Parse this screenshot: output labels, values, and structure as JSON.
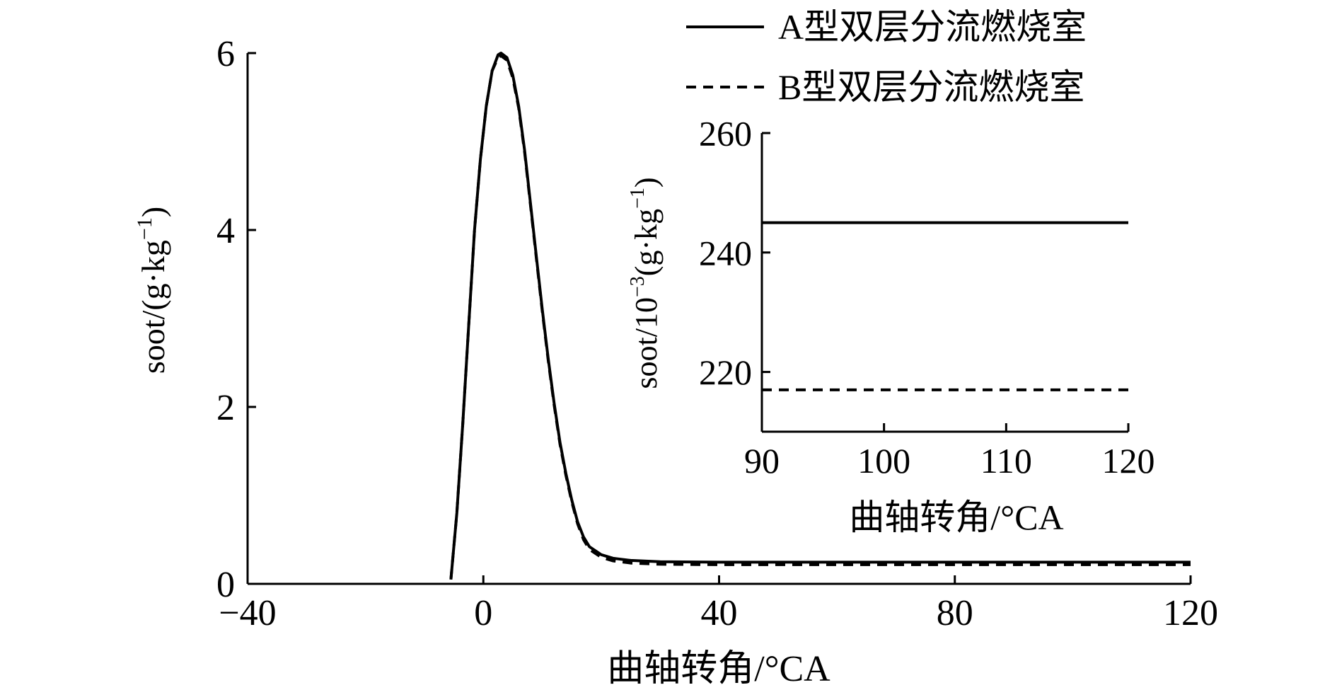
{
  "chart_data": [
    {
      "type": "line",
      "title": "",
      "xlabel": "曲轴转角/°CA",
      "ylabel_parts": [
        "soot/(g·kg",
        "−1",
        ")"
      ],
      "xlim": [
        -40,
        120
      ],
      "ylim": [
        0,
        6
      ],
      "x_ticks": [
        -40,
        0,
        40,
        80,
        120
      ],
      "x_tick_labels": [
        "−40",
        "0",
        "40",
        "80",
        "120"
      ],
      "y_ticks": [
        0,
        2,
        4,
        6
      ],
      "y_tick_labels": [
        "0",
        "2",
        "4",
        "6"
      ],
      "legend_position": "top-right",
      "series": [
        {
          "name": "A型双层分流燃烧室",
          "style": "solid",
          "x": [
            -5.5,
            -4.5,
            -3.5,
            -2.5,
            -1.5,
            -0.5,
            0.5,
            1.5,
            2.5,
            3.0,
            4.0,
            5.0,
            6.0,
            7.0,
            8.0,
            9.0,
            10.0,
            11.0,
            12.0,
            13.0,
            14.0,
            15.0,
            16.0,
            17.0,
            18.0,
            20.0,
            22.0,
            25.0,
            30.0,
            40.0,
            60.0,
            80.0,
            100.0,
            120.0
          ],
          "y": [
            0.05,
            0.8,
            1.8,
            2.9,
            4.0,
            4.8,
            5.4,
            5.8,
            5.98,
            6.0,
            5.95,
            5.75,
            5.4,
            4.9,
            4.3,
            3.7,
            3.1,
            2.55,
            2.05,
            1.6,
            1.25,
            0.95,
            0.7,
            0.53,
            0.42,
            0.33,
            0.29,
            0.265,
            0.25,
            0.245,
            0.245,
            0.245,
            0.245,
            0.245
          ]
        },
        {
          "name": "B型双层分流燃烧室",
          "style": "dashed",
          "x": [
            -5.5,
            -4.5,
            -3.5,
            -2.5,
            -1.5,
            -0.5,
            0.5,
            1.5,
            2.5,
            3.0,
            4.0,
            5.0,
            6.0,
            7.0,
            8.0,
            9.0,
            10.0,
            11.0,
            12.0,
            13.0,
            14.0,
            15.0,
            16.0,
            17.0,
            18.0,
            20.0,
            22.0,
            25.0,
            30.0,
            40.0,
            60.0,
            80.0,
            100.0,
            120.0
          ],
          "y": [
            0.05,
            0.8,
            1.8,
            2.9,
            4.0,
            4.8,
            5.4,
            5.8,
            5.95,
            5.97,
            5.92,
            5.72,
            5.38,
            4.88,
            4.28,
            3.68,
            3.08,
            2.53,
            2.03,
            1.58,
            1.23,
            0.93,
            0.68,
            0.5,
            0.39,
            0.3,
            0.26,
            0.235,
            0.222,
            0.217,
            0.217,
            0.217,
            0.217,
            0.217
          ]
        }
      ]
    },
    {
      "type": "line",
      "title": "",
      "xlabel": "曲轴转角/°CA",
      "ylabel_parts": [
        "soot/10",
        "−3",
        "(g·kg",
        "−1",
        ")"
      ],
      "xlim": [
        90,
        120
      ],
      "ylim": [
        210,
        260
      ],
      "x_ticks": [
        90,
        100,
        110,
        120
      ],
      "x_tick_labels": [
        "90",
        "100",
        "110",
        "120"
      ],
      "y_ticks": [
        220,
        240,
        260
      ],
      "y_tick_labels": [
        "220",
        "240",
        "260"
      ],
      "series": [
        {
          "name": "A型双层分流燃烧室",
          "style": "solid",
          "x": [
            90,
            120
          ],
          "y": [
            245,
            245
          ]
        },
        {
          "name": "B型双层分流燃烧室",
          "style": "dashed",
          "x": [
            90,
            120
          ],
          "y": [
            217,
            217
          ]
        }
      ]
    }
  ]
}
